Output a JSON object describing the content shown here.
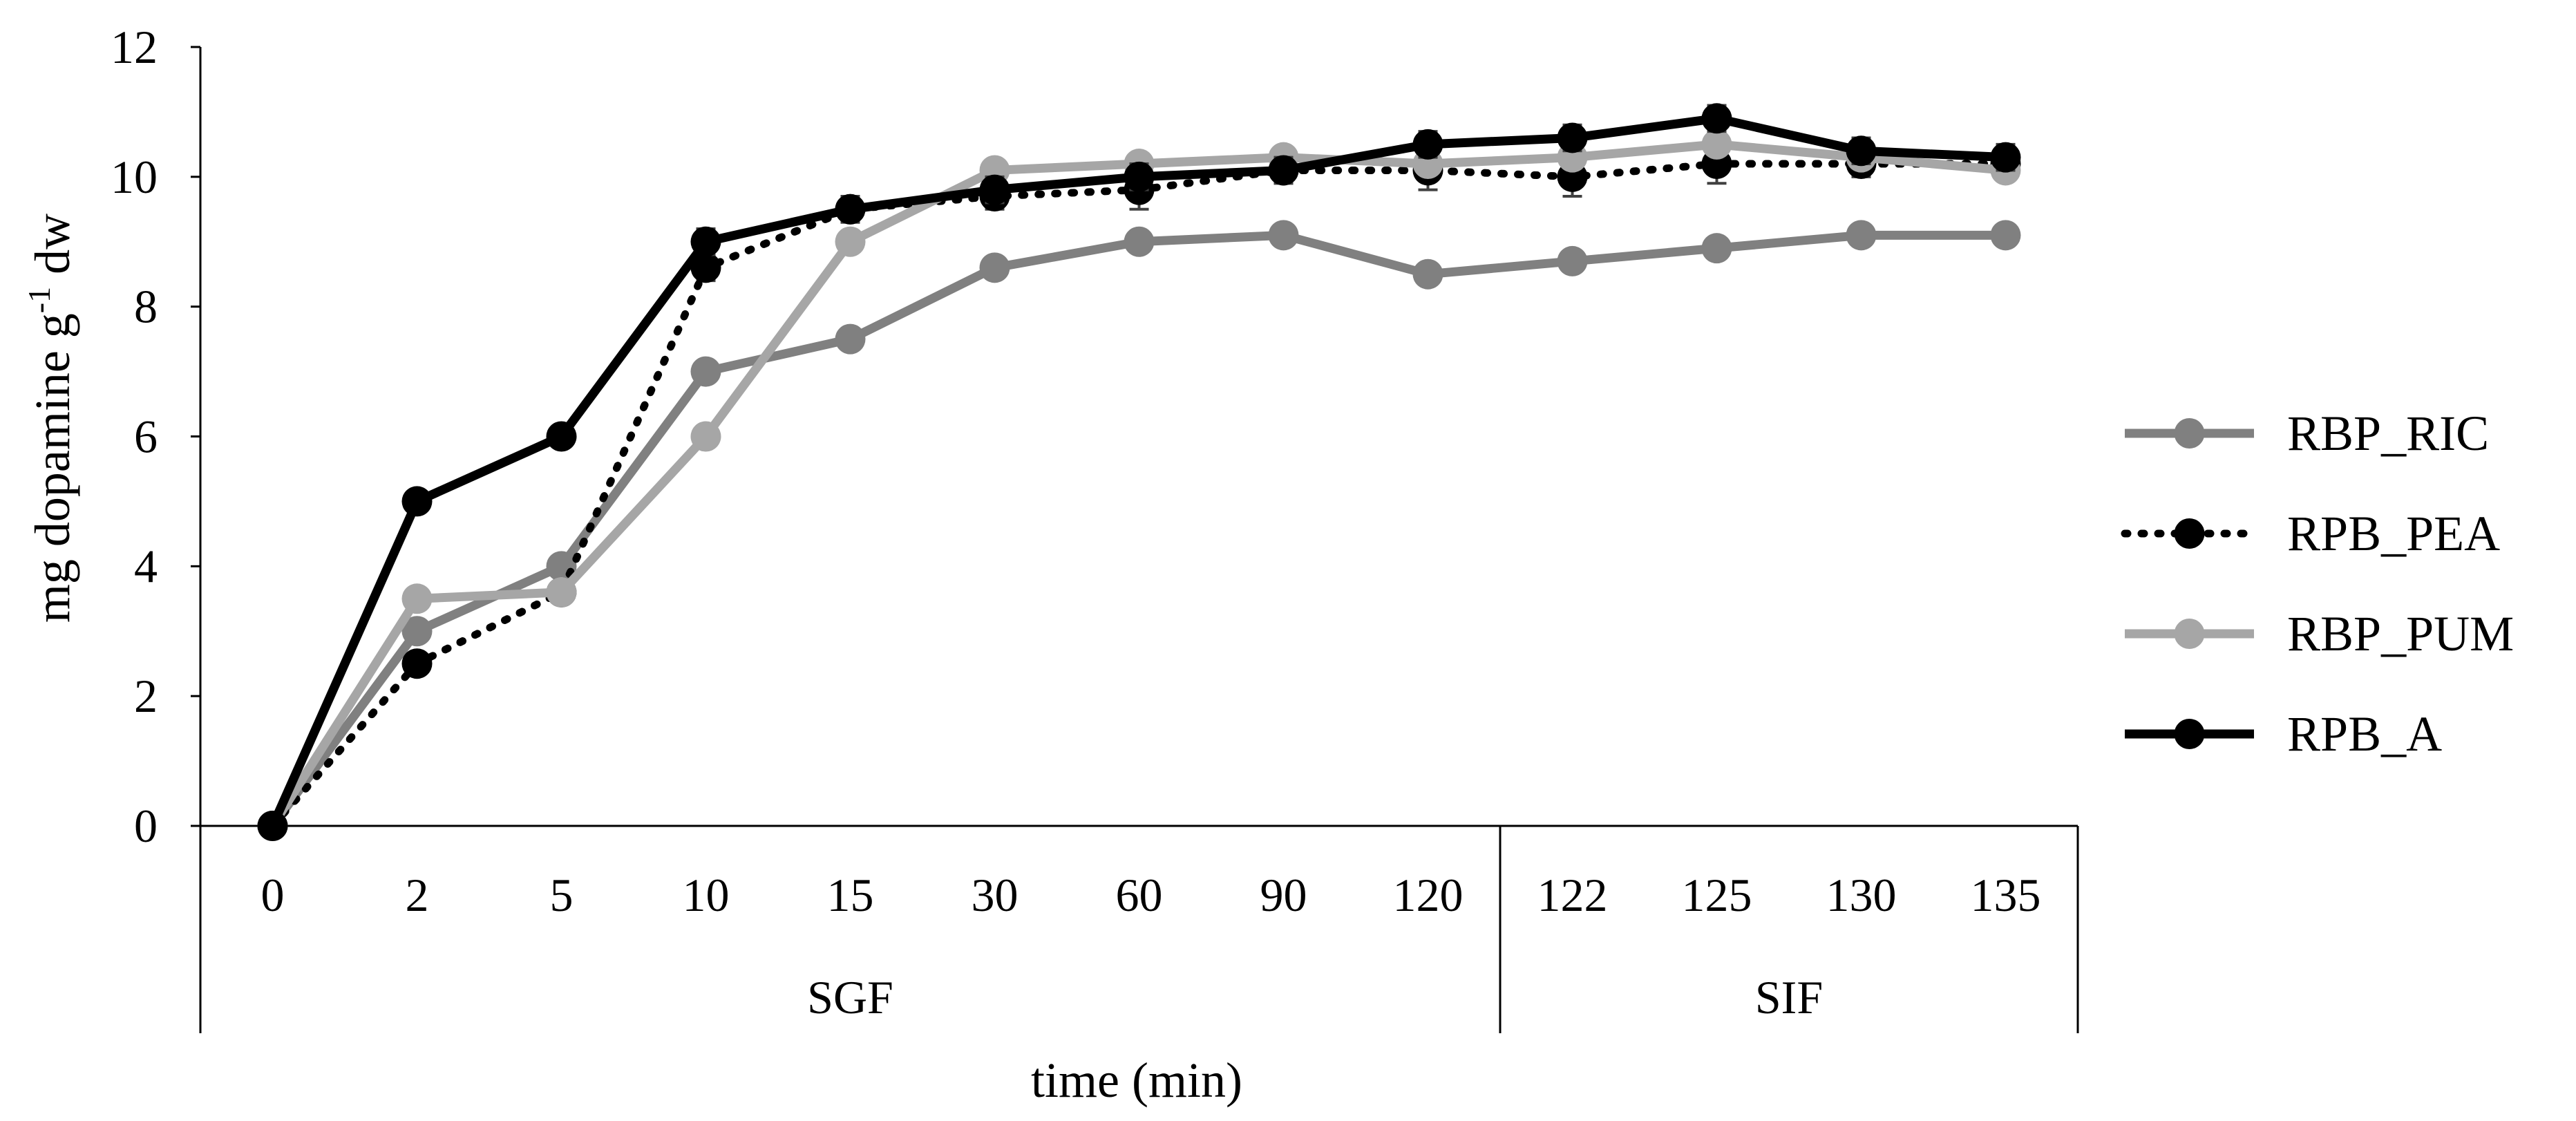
{
  "chart_data": {
    "type": "line",
    "title": "",
    "ylabel_main": "mg dopamine g",
    "ylabel_sup": "-1",
    "ylabel_tail": " dw",
    "xlabel": "time (min)",
    "ylim": [
      0,
      12
    ],
    "yticks": [
      0,
      2,
      4,
      6,
      8,
      10,
      12
    ],
    "categories": [
      "0",
      "2",
      "5",
      "10",
      "15",
      "30",
      "60",
      "90",
      "120",
      "122",
      "125",
      "130",
      "135"
    ],
    "groups": [
      {
        "label": "SGF",
        "start": 0,
        "end": 8
      },
      {
        "label": "SIF",
        "start": 9,
        "end": 12
      }
    ],
    "legend_position": "right",
    "series": [
      {
        "name": "RBP_RIC",
        "color": "#808080",
        "style": "solid",
        "values": [
          0,
          3.0,
          4.0,
          7.0,
          7.5,
          8.6,
          9.0,
          9.1,
          8.5,
          8.7,
          8.9,
          9.1,
          9.1
        ],
        "errors": [
          0,
          0,
          0,
          0,
          0,
          0.1,
          0.1,
          0.1,
          0.1,
          0.1,
          0.1,
          0.1,
          0.1
        ]
      },
      {
        "name": "RPB_PEA",
        "color": "#000000",
        "style": "dotted",
        "values": [
          0,
          2.5,
          3.6,
          8.6,
          9.5,
          9.7,
          9.8,
          10.1,
          10.1,
          10.0,
          10.2,
          10.2,
          10.2
        ],
        "errors": [
          0,
          0,
          0,
          0.2,
          0.2,
          0.2,
          0.3,
          0.2,
          0.3,
          0.3,
          0.3,
          0.2,
          0.2
        ]
      },
      {
        "name": "RBP_PUM",
        "color": "#a6a6a6",
        "style": "solid",
        "values": [
          0,
          3.5,
          3.6,
          6.0,
          9.0,
          10.1,
          10.2,
          10.3,
          10.2,
          10.3,
          10.5,
          10.3,
          10.1
        ],
        "errors": [
          0,
          0,
          0,
          0,
          0,
          0.1,
          0.1,
          0.1,
          0.1,
          0.1,
          0.1,
          0.1,
          0.1
        ]
      },
      {
        "name": "RPB_A",
        "color": "#000000",
        "style": "solid",
        "values": [
          0,
          5.0,
          6.0,
          9.0,
          9.5,
          9.8,
          10.0,
          10.1,
          10.5,
          10.6,
          10.9,
          10.4,
          10.3
        ],
        "errors": [
          0,
          0,
          0,
          0.2,
          0.2,
          0.2,
          0.2,
          0.2,
          0.2,
          0.2,
          0.2,
          0.2,
          0.2
        ]
      }
    ]
  }
}
